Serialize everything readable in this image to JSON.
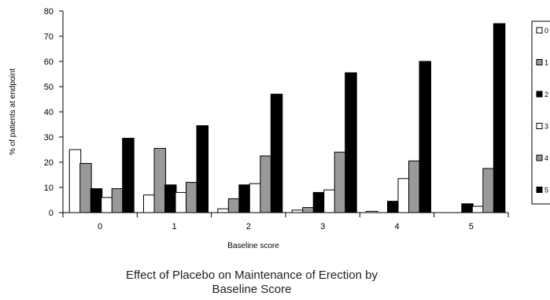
{
  "chart_data": {
    "type": "bar",
    "categories": [
      "0",
      "1",
      "2",
      "3",
      "4",
      "5"
    ],
    "series": [
      {
        "name": "0",
        "values": [
          25,
          7,
          1.5,
          1,
          0.5,
          0
        ],
        "color": "#ffffff"
      },
      {
        "name": "1",
        "values": [
          19.5,
          25.5,
          5.5,
          2,
          0,
          0
        ],
        "color": "#999999"
      },
      {
        "name": "2",
        "values": [
          9.5,
          11,
          11,
          8,
          4.5,
          3.5
        ],
        "color": "#000000"
      },
      {
        "name": "3",
        "values": [
          6,
          8,
          11.5,
          9,
          13.5,
          2.5
        ],
        "color": "#ffffff"
      },
      {
        "name": "4",
        "values": [
          9.5,
          12,
          22.5,
          24,
          20.5,
          17.5
        ],
        "color": "#999999"
      },
      {
        "name": "5",
        "values": [
          29.5,
          34.5,
          47,
          55.5,
          60,
          75
        ],
        "color": "#000000"
      }
    ],
    "xlabel": "Baseline score",
    "ylabel": "% of patients at endpoint",
    "ylim": [
      0,
      80
    ],
    "yticks": [
      "0",
      "10",
      "20",
      "30",
      "40",
      "50",
      "60",
      "70",
      "80"
    ],
    "grid": false,
    "legend_position": "right",
    "title": "Effect of Placebo on Maintenance of Erection by Baseline Score",
    "title_lines": [
      "Effect of Placebo on Maintenance of Erection by",
      "Baseline Score"
    ]
  }
}
